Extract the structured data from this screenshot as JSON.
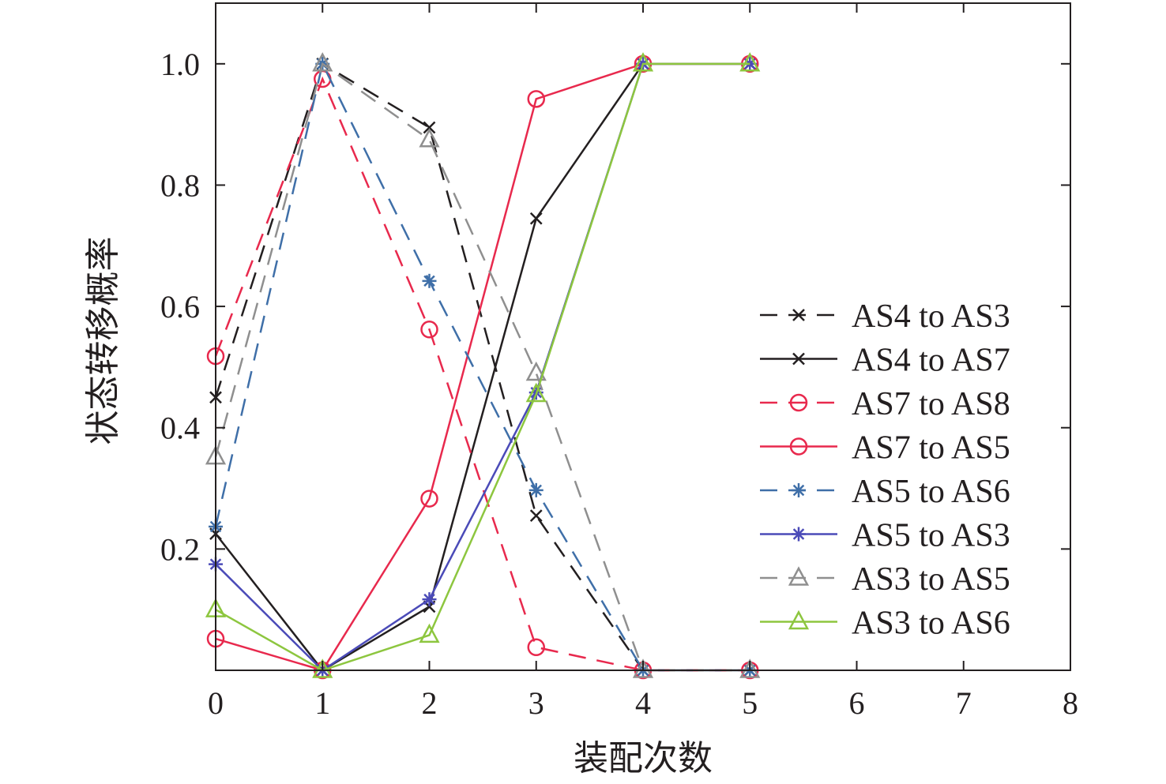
{
  "chart_data": {
    "type": "line",
    "title": "",
    "xlabel": "装配次数",
    "ylabel": "状态转移概率",
    "xlim": [
      0,
      8
    ],
    "ylim": [
      0,
      1.1
    ],
    "x_ticks": [
      0,
      1,
      2,
      3,
      4,
      5,
      6,
      7,
      8
    ],
    "x_tick_labels": [
      "0",
      "1",
      "2",
      "3",
      "4",
      "5",
      "6",
      "7",
      "8"
    ],
    "y_ticks": [
      0.2,
      0.4,
      0.6,
      0.8,
      1.0
    ],
    "y_tick_labels": [
      "0.2",
      "0.4",
      "0.6",
      "0.8",
      "1.0"
    ],
    "grid": false,
    "legend_position": "right",
    "x": [
      0,
      1,
      2,
      3,
      4,
      5
    ],
    "series": [
      {
        "name": "AS4 to AS3",
        "values": [
          0.45,
          1.0,
          0.895,
          0.255,
          0.0,
          0.0
        ],
        "color": "#231f20",
        "dash": "dashed",
        "marker": "x"
      },
      {
        "name": "AS4 to AS7",
        "values": [
          0.225,
          0.0,
          0.105,
          0.745,
          1.0,
          1.0
        ],
        "color": "#231f20",
        "dash": "solid",
        "marker": "x"
      },
      {
        "name": "AS7 to AS8",
        "values": [
          0.518,
          0.975,
          0.562,
          0.038,
          0.0,
          0.0
        ],
        "color": "#e8294d",
        "dash": "dashed",
        "marker": "circle"
      },
      {
        "name": "AS7 to AS5",
        "values": [
          0.052,
          0.0,
          0.283,
          0.942,
          1.0,
          1.0
        ],
        "color": "#e8294d",
        "dash": "solid",
        "marker": "circle"
      },
      {
        "name": "AS5 to AS6",
        "values": [
          0.237,
          1.0,
          0.642,
          0.297,
          0.0,
          0.0
        ],
        "color": "#3f6fa8",
        "dash": "dashed",
        "marker": "asterisk"
      },
      {
        "name": "AS5 to AS3",
        "values": [
          0.175,
          0.0,
          0.117,
          0.458,
          1.0,
          1.0
        ],
        "color": "#4b4bb8",
        "dash": "solid",
        "marker": "asterisk"
      },
      {
        "name": "AS3 to AS5",
        "values": [
          0.352,
          1.0,
          0.875,
          0.49,
          0.0,
          0.0
        ],
        "color": "#8f8f8f",
        "dash": "dashed",
        "marker": "triangle"
      },
      {
        "name": "AS3 to AS6",
        "values": [
          0.1,
          0.0,
          0.058,
          0.455,
          1.0,
          1.0
        ],
        "color": "#8dc63f",
        "dash": "solid",
        "marker": "triangle"
      }
    ]
  }
}
